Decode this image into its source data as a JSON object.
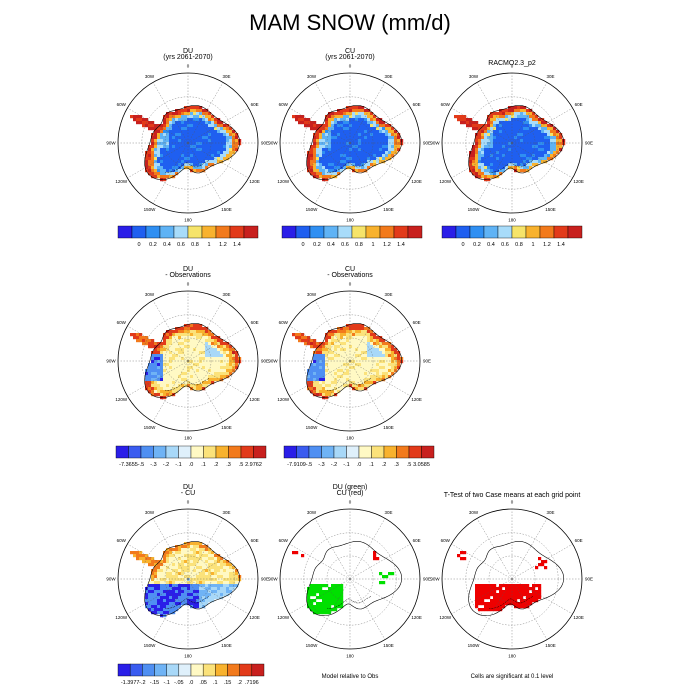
{
  "title": "MAM SNOW (mm/d)",
  "longitude_labels": [
    "0",
    "30E",
    "60E",
    "90E",
    "120E",
    "150E",
    "180",
    "150W",
    "120W",
    "90W",
    "60W",
    "30W"
  ],
  "chart_data": [
    {
      "type": "heatmap",
      "id": "du",
      "title_line1": "DU",
      "title_line2": "(yrs 2061-2070)",
      "colorbar": {
        "labels": [
          "0",
          "0.2",
          "0.4",
          "0.6",
          "0.8",
          "1",
          "1.2",
          "1.4"
        ],
        "colors": [
          "#2a1ee8",
          "#1f5ff0",
          "#2f8ff2",
          "#5fb3f5",
          "#a8dcfa",
          "#f6e46a",
          "#f8b22e",
          "#f27a1c",
          "#e23a1a",
          "#c8201e"
        ]
      }
    },
    {
      "type": "heatmap",
      "id": "cu",
      "title_line1": "CU",
      "title_line2": "(yrs 2061-2070)",
      "colorbar": {
        "labels": [
          "0",
          "0.2",
          "0.4",
          "0.6",
          "0.8",
          "1",
          "1.2",
          "1.4"
        ],
        "colors": [
          "#2a1ee8",
          "#1f5ff0",
          "#2f8ff2",
          "#5fb3f5",
          "#a8dcfa",
          "#f6e46a",
          "#f8b22e",
          "#f27a1c",
          "#e23a1a",
          "#c8201e"
        ]
      }
    },
    {
      "type": "heatmap",
      "id": "obs",
      "title_line1": "RACMO2.3_p2",
      "title_line2": "",
      "colorbar": {
        "labels": [
          "0",
          "0.2",
          "0.4",
          "0.6",
          "0.8",
          "1",
          "1.2",
          "1.4"
        ],
        "colors": [
          "#2a1ee8",
          "#1f5ff0",
          "#2f8ff2",
          "#5fb3f5",
          "#a8dcfa",
          "#f6e46a",
          "#f8b22e",
          "#f27a1c",
          "#e23a1a",
          "#c8201e"
        ]
      }
    },
    {
      "type": "heatmap",
      "id": "du-obs",
      "title_line1": "DU",
      "title_line2": "- Observations",
      "colorbar": {
        "labels": [
          "-7.3655",
          "-.5",
          "-.3",
          "-.2",
          "-.1",
          ".0",
          ".1",
          ".2",
          ".3",
          ".5",
          "2.9762"
        ],
        "colors": [
          "#2a1ee8",
          "#3a5cf0",
          "#4f8ff2",
          "#6fb3f5",
          "#a8d8f8",
          "#dff0fb",
          "#fff9c4",
          "#fbe27a",
          "#f8b22e",
          "#f27a1c",
          "#e23a1a",
          "#c8201e"
        ]
      }
    },
    {
      "type": "heatmap",
      "id": "cu-obs",
      "title_line1": "CU",
      "title_line2": "- Observations",
      "colorbar": {
        "labels": [
          "-7.9109",
          "-.5",
          "-.3",
          "-.2",
          "-.1",
          ".0",
          ".1",
          ".2",
          ".3",
          ".5",
          "3.0585"
        ],
        "colors": [
          "#2a1ee8",
          "#3a5cf0",
          "#4f8ff2",
          "#6fb3f5",
          "#a8d8f8",
          "#dff0fb",
          "#fff9c4",
          "#fbe27a",
          "#f8b22e",
          "#f27a1c",
          "#e23a1a",
          "#c8201e"
        ]
      }
    },
    {
      "type": "heatmap",
      "id": "du-cu",
      "title_line1": "DU",
      "title_line2": "- CU",
      "colorbar": {
        "labels": [
          "-1.3977",
          "-.2",
          "-.15",
          "-.1",
          "-.05",
          ".0",
          ".05",
          ".1",
          ".15",
          ".2",
          ".7196"
        ],
        "colors": [
          "#2a1ee8",
          "#3a5cf0",
          "#4f8ff2",
          "#6fb3f5",
          "#a8d8f8",
          "#dff0fb",
          "#fff9c4",
          "#fbe27a",
          "#f8b22e",
          "#f27a1c",
          "#e23a1a",
          "#c8201e"
        ]
      }
    },
    {
      "type": "heatmap",
      "id": "model-rel",
      "title_line1": "DU (green)",
      "title_line2": "CU (red)",
      "caption": "Model relative to Obs",
      "series": [
        {
          "name": "DU (green)",
          "color": "#00e000"
        },
        {
          "name": "CU (red)",
          "color": "#ee0000"
        }
      ]
    },
    {
      "type": "heatmap",
      "id": "ttest",
      "title_line1": "T-Test of two Case means at each grid point",
      "title_line2": "",
      "caption": "Cells are significant at 0.1 level",
      "series": [
        {
          "name": "significant",
          "color": "#ee0000"
        }
      ]
    }
  ]
}
